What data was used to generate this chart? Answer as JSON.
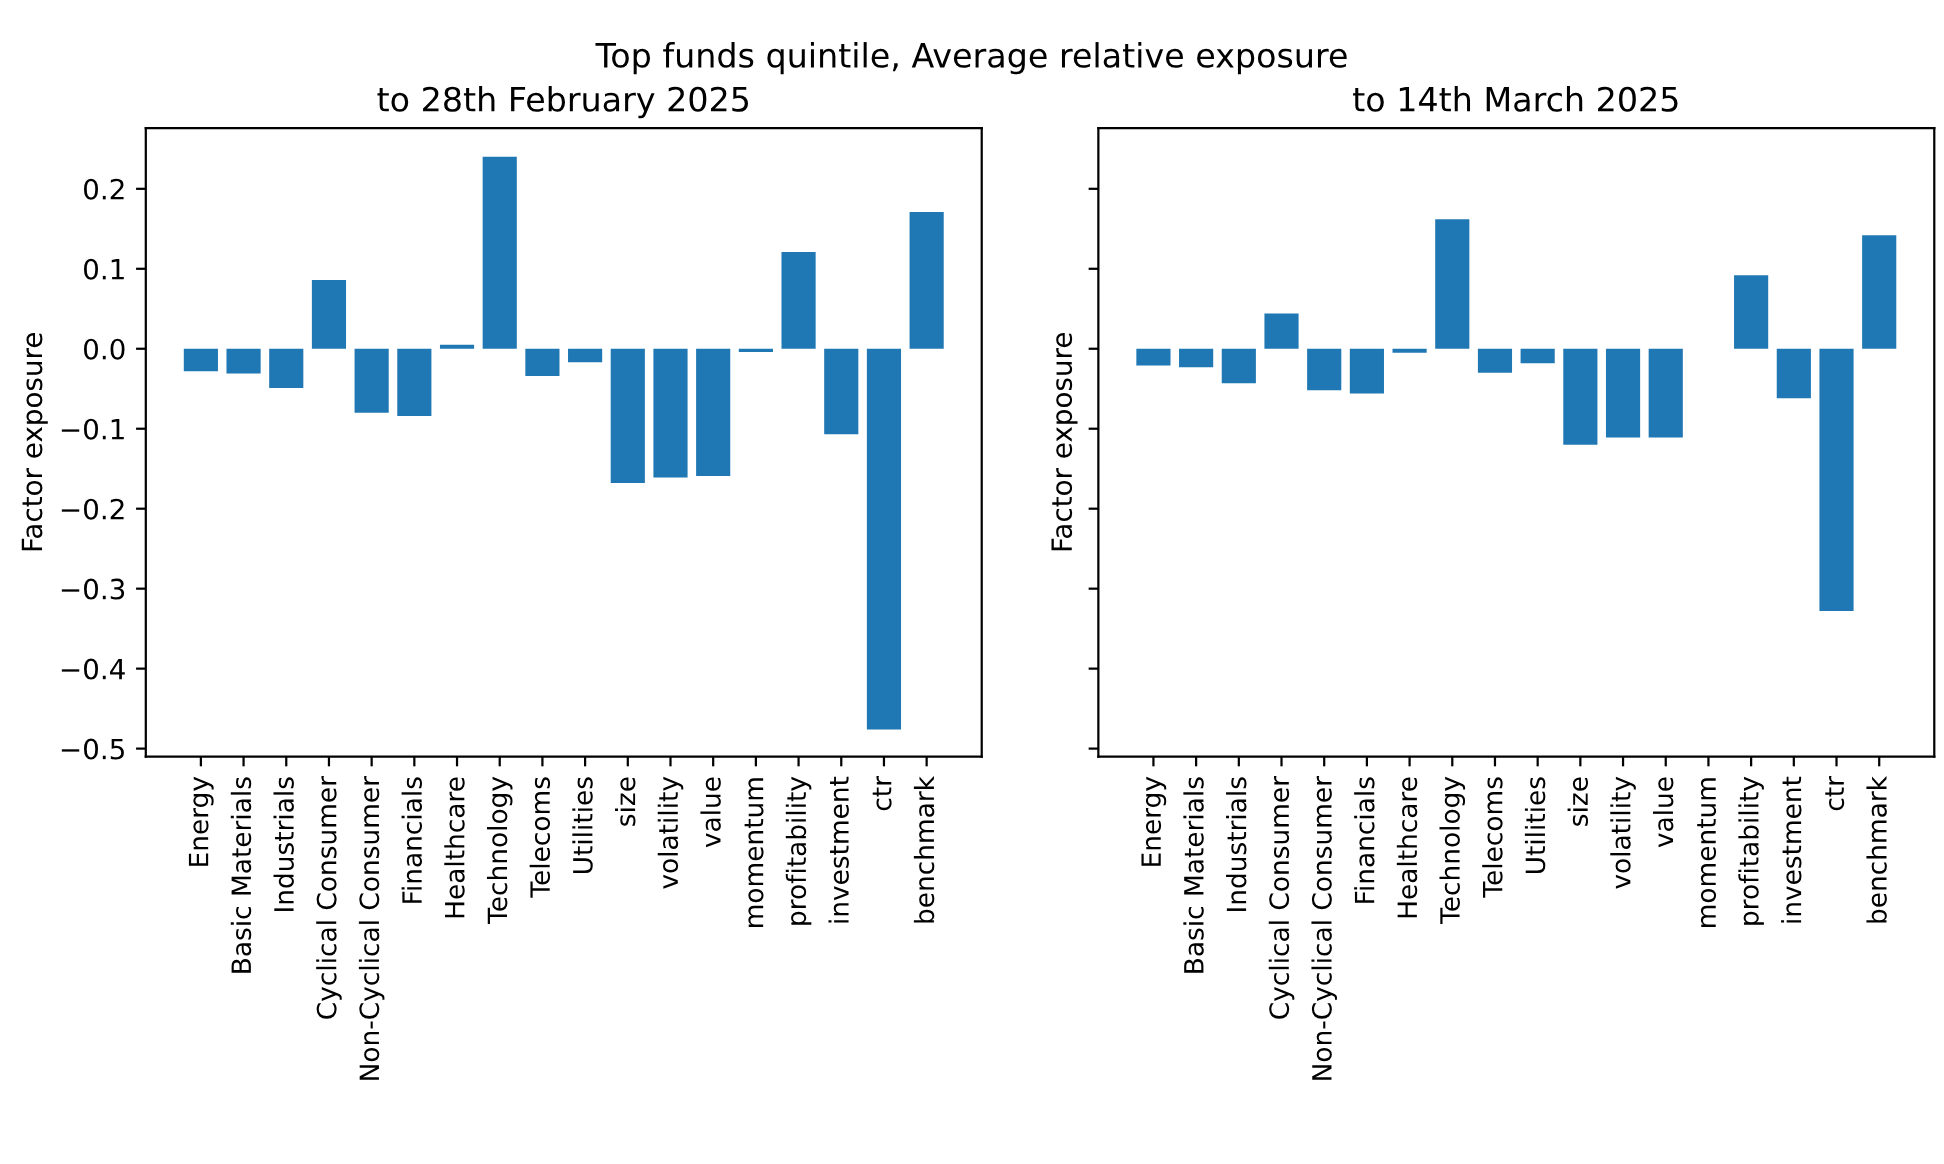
{
  "chart_data": [
    {
      "type": "bar",
      "subtitle": "Top funds quintile, Average relative exposure",
      "title": "to 28th February 2025",
      "ylabel": "Factor exposure",
      "categories": [
        "Energy",
        "Basic Materials",
        "Industrials",
        "Cyclical Consumer",
        "Non-Cyclical Consumer",
        "Financials",
        "Healthcare",
        "Technology",
        "Telecoms",
        "Utilities",
        "size",
        "volatility",
        "value",
        "momentum",
        "profitability",
        "investment",
        "ctr",
        "benchmark"
      ],
      "values": [
        -0.028,
        -0.031,
        -0.049,
        0.086,
        -0.08,
        -0.084,
        0.005,
        0.24,
        -0.034,
        -0.017,
        -0.168,
        -0.161,
        -0.159,
        -0.004,
        0.121,
        -0.107,
        -0.476,
        0.171
      ],
      "color": "#1f77b4",
      "ylim": [
        -0.51,
        0.276
      ],
      "yticks": [
        {
          "value": -0.5,
          "label": "−0.5"
        },
        {
          "value": -0.4,
          "label": "−0.4"
        },
        {
          "value": -0.3,
          "label": "−0.3"
        },
        {
          "value": -0.2,
          "label": "−0.2"
        },
        {
          "value": -0.1,
          "label": "−0.1"
        },
        {
          "value": 0.0,
          "label": "0.0"
        },
        0.1,
        0.2
      ],
      "grid": false
    },
    {
      "type": "bar",
      "title": "to 14th March 2025",
      "ylabel": "Factor exposure",
      "categories": [
        "Energy",
        "Basic Materials",
        "Industrials",
        "Cyclical Consumer",
        "Non-Cyclical Consumer",
        "Financials",
        "Healthcare",
        "Technology",
        "Telecoms",
        "Utilities",
        "size",
        "volatility",
        "value",
        "momentum",
        "profitability",
        "investment",
        "ctr",
        "benchmark"
      ],
      "values": [
        -0.021,
        -0.023,
        -0.043,
        0.044,
        -0.052,
        -0.056,
        -0.005,
        0.162,
        -0.03,
        -0.018,
        -0.12,
        -0.111,
        -0.111,
        0.0,
        0.092,
        -0.062,
        -0.328,
        0.142
      ],
      "color": "#1f77b4",
      "ylim": [
        -0.51,
        0.276
      ],
      "yticks": [
        {
          "value": -0.5,
          "label": null
        },
        {
          "value": -0.4,
          "label": null
        },
        {
          "value": -0.3,
          "label": null
        },
        {
          "value": -0.2,
          "label": null
        },
        {
          "value": -0.1,
          "label": null
        },
        {
          "value": 0.0,
          "label": null
        },
        {
          "value": 0.1,
          "label": null
        },
        {
          "value": 0.2,
          "label": null
        }
      ],
      "tick_labels": "x",
      "grid": false
    }
  ]
}
